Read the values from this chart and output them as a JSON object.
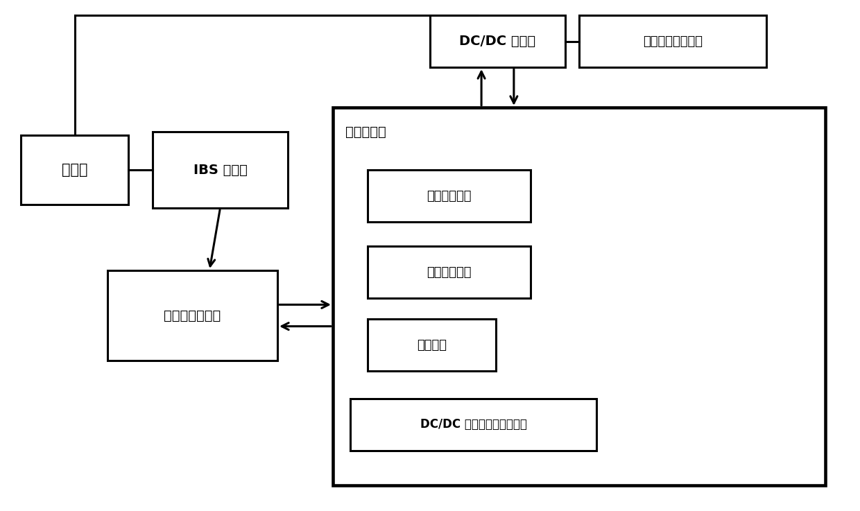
{
  "background_color": "#ffffff",
  "line_color": "#000000",
  "box_edge_color": "#000000",
  "box_face_color": "#ffffff",
  "text_color": "#000000",
  "lw": 2.2,
  "boxes": {
    "battery": {
      "label": "蓄电池",
      "fs": 15
    },
    "ibs": {
      "label": "IBS 传感器",
      "fs": 15
    },
    "dcdc": {
      "label": "DC/DC 转换器",
      "fs": 14
    },
    "emergency": {
      "label": "紧急制动指示模块",
      "fs": 13
    },
    "engine": {
      "label": "发动机控制系统",
      "fs": 15
    },
    "vc_label": {
      "label": "整车控制器",
      "fs": 14
    },
    "voltage": {
      "label": "电压修正模块",
      "fs": 13
    },
    "start_judge": {
      "label": "启动判断模块",
      "fs": 13
    },
    "warning": {
      "label": "预警模块",
      "fs": 13
    },
    "fault": {
      "label": "DC/DC 转换器故障处理模块",
      "fs": 12
    }
  }
}
